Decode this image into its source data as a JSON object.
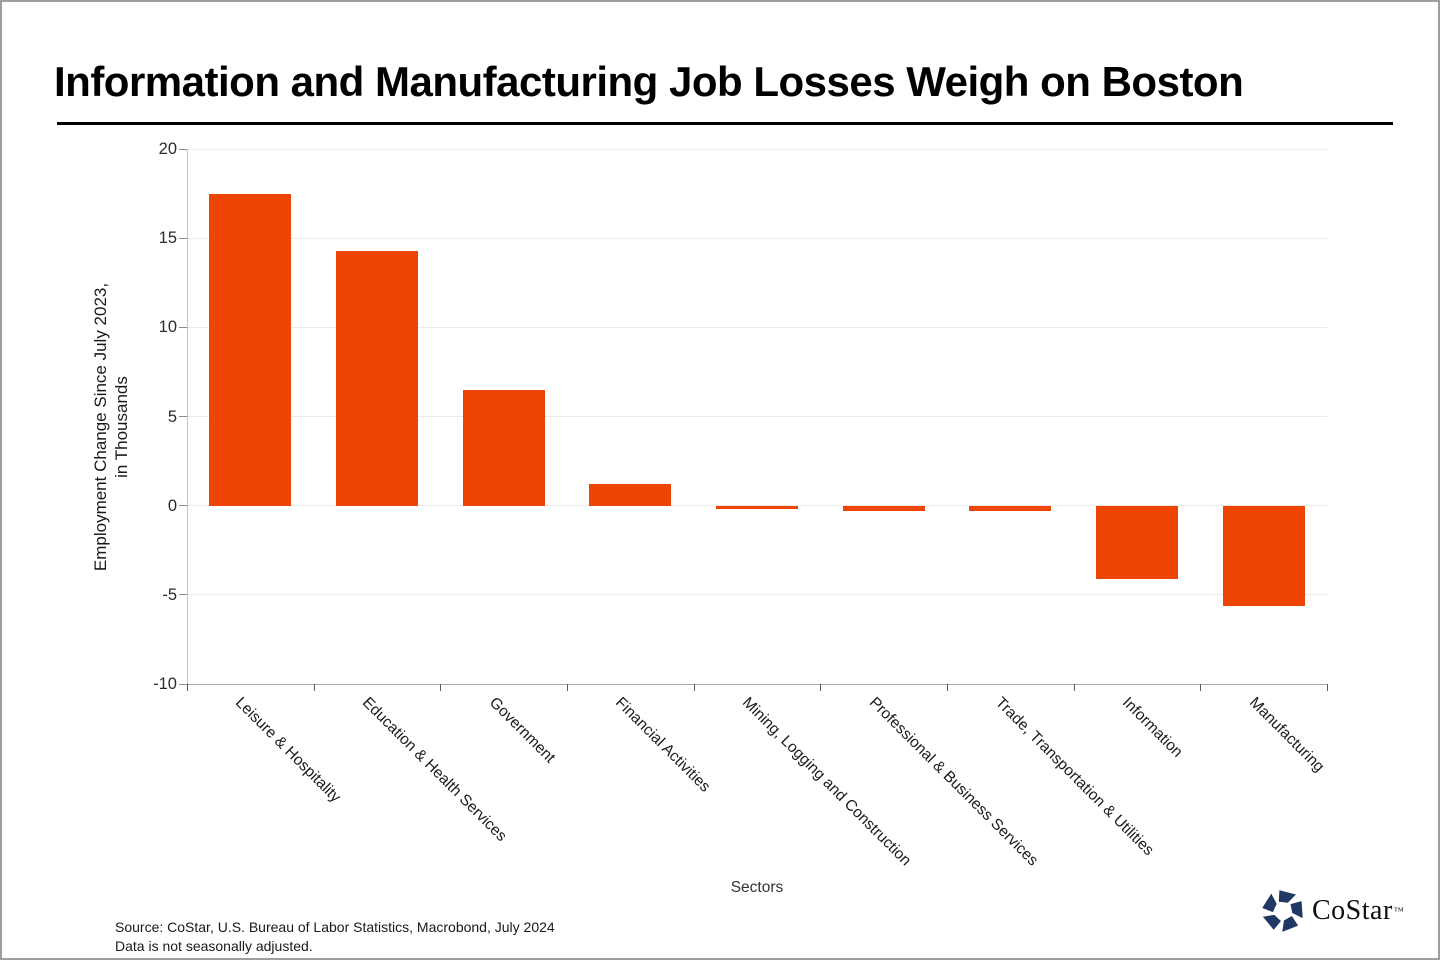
{
  "title": "Information and Manufacturing Job Losses Weigh on Boston",
  "chart_data": {
    "type": "bar",
    "categories": [
      "Leisure & Hospitality",
      "Education & Health Services",
      "Government",
      "Financial Activities",
      "Mining, Logging and Construction",
      "Professional & Business Services",
      "Trade, Transportation & Utilities",
      "Information",
      "Manufacturing"
    ],
    "values": [
      17.5,
      14.3,
      6.5,
      1.2,
      -0.2,
      -0.3,
      -0.3,
      -4.1,
      -5.6
    ],
    "title": "Information and Manufacturing Job Losses Weigh on Boston",
    "xlabel": "Sectors",
    "ylabel_line1": "Employment Change Since July 2023,",
    "ylabel_line2": "in Thousands",
    "ylim": [
      -10,
      20
    ],
    "yticks": [
      20,
      15,
      10,
      5,
      0,
      -5,
      -10
    ],
    "grid": true,
    "legend_position": "none",
    "bar_color": "#ED4503"
  },
  "footer": {
    "source_line1": "Source: CoStar, U.S. Bureau of Labor Statistics, Macrobond, July 2024",
    "source_line2": "Data is not seasonally adjusted."
  },
  "branding": {
    "logo_text": "CoStar",
    "trademark": "™",
    "logo_color": "#1F3864"
  }
}
